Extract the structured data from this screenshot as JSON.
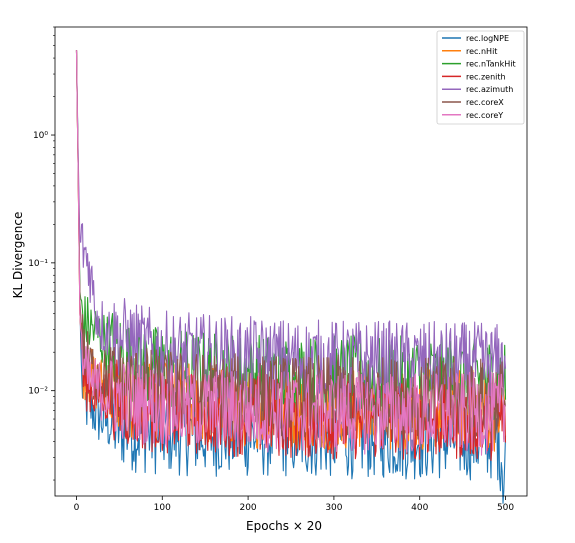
{
  "chart_data": {
    "type": "line",
    "xlabel": "Epochs × 20",
    "ylabel": "KL Divergence",
    "yscale": "log",
    "xlim": [
      -25,
      525
    ],
    "ylim": [
      0.0015,
      7
    ],
    "xticks": [
      0,
      100,
      200,
      300,
      400,
      500
    ],
    "yticks": [
      {
        "value": 1,
        "label": "10⁰"
      },
      {
        "value": 0.1,
        "label": "10⁻¹"
      },
      {
        "value": 0.01,
        "label": "10⁻²"
      }
    ],
    "legend_position": "top-right",
    "series": [
      {
        "name": "rec.logNPE",
        "color": "#1f77b4",
        "points": [
          [
            0,
            4.6
          ],
          [
            2,
            0.6
          ],
          [
            4,
            0.05
          ],
          [
            6,
            0.012
          ],
          [
            10,
            0.008
          ],
          [
            20,
            0.007
          ],
          [
            30,
            0.006
          ],
          [
            40,
            0.0055
          ],
          [
            50,
            0.0052
          ],
          [
            60,
            0.005
          ],
          [
            70,
            0.0048
          ],
          [
            80,
            0.0047
          ],
          [
            100,
            0.0046
          ],
          [
            150,
            0.0045
          ],
          [
            200,
            0.0044
          ],
          [
            250,
            0.0044
          ],
          [
            300,
            0.0043
          ],
          [
            350,
            0.0043
          ],
          [
            400,
            0.0042
          ],
          [
            450,
            0.0042
          ],
          [
            490,
            0.0042
          ],
          [
            495,
            0.0033
          ],
          [
            498,
            0.002
          ],
          [
            500,
            0.004
          ]
        ]
      },
      {
        "name": "rec.nHit",
        "color": "#ff7f0e",
        "points": [
          [
            0,
            4.6
          ],
          [
            2,
            0.5
          ],
          [
            4,
            0.04
          ],
          [
            8,
            0.015
          ],
          [
            20,
            0.012
          ],
          [
            40,
            0.01
          ],
          [
            60,
            0.009
          ],
          [
            80,
            0.0085
          ],
          [
            100,
            0.008
          ],
          [
            150,
            0.0078
          ],
          [
            200,
            0.0075
          ],
          [
            250,
            0.0074
          ],
          [
            300,
            0.0073
          ],
          [
            350,
            0.0072
          ],
          [
            400,
            0.0072
          ],
          [
            450,
            0.0071
          ],
          [
            500,
            0.007
          ]
        ]
      },
      {
        "name": "rec.nTankHit",
        "color": "#2ca02c",
        "points": [
          [
            0,
            4.6
          ],
          [
            2,
            0.6
          ],
          [
            4,
            0.06
          ],
          [
            8,
            0.035
          ],
          [
            20,
            0.03
          ],
          [
            40,
            0.022
          ],
          [
            60,
            0.018
          ],
          [
            80,
            0.016
          ],
          [
            100,
            0.015
          ],
          [
            150,
            0.014
          ],
          [
            200,
            0.0135
          ],
          [
            250,
            0.013
          ],
          [
            300,
            0.013
          ],
          [
            350,
            0.0128
          ],
          [
            400,
            0.0126
          ],
          [
            450,
            0.0125
          ],
          [
            495,
            0.0125
          ],
          [
            500,
            0.012
          ]
        ]
      },
      {
        "name": "rec.zenith",
        "color": "#d62728",
        "points": [
          [
            0,
            4.6
          ],
          [
            2,
            0.5
          ],
          [
            4,
            0.04
          ],
          [
            8,
            0.013
          ],
          [
            20,
            0.01
          ],
          [
            40,
            0.009
          ],
          [
            60,
            0.0075
          ],
          [
            80,
            0.007
          ],
          [
            100,
            0.0068
          ],
          [
            150,
            0.0066
          ],
          [
            200,
            0.0064
          ],
          [
            250,
            0.0062
          ],
          [
            300,
            0.0061
          ],
          [
            350,
            0.006
          ],
          [
            400,
            0.006
          ],
          [
            450,
            0.006
          ],
          [
            500,
            0.006
          ]
        ]
      },
      {
        "name": "rec.azimuth",
        "color": "#9467bd",
        "points": [
          [
            0,
            4.6
          ],
          [
            2,
            0.7
          ],
          [
            4,
            0.15
          ],
          [
            8,
            0.13
          ],
          [
            14,
            0.1
          ],
          [
            18,
            0.07
          ],
          [
            20,
            0.055
          ],
          [
            24,
            0.04
          ],
          [
            30,
            0.032
          ],
          [
            40,
            0.028
          ],
          [
            60,
            0.025
          ],
          [
            80,
            0.022
          ],
          [
            100,
            0.02
          ],
          [
            150,
            0.019
          ],
          [
            200,
            0.018
          ],
          [
            250,
            0.0175
          ],
          [
            300,
            0.017
          ],
          [
            350,
            0.017
          ],
          [
            400,
            0.0165
          ],
          [
            450,
            0.0165
          ],
          [
            500,
            0.016
          ]
        ]
      },
      {
        "name": "rec.coreX",
        "color": "#8c564b",
        "points": [
          [
            0,
            4.6
          ],
          [
            2,
            0.5
          ],
          [
            4,
            0.05
          ],
          [
            8,
            0.02
          ],
          [
            20,
            0.014
          ],
          [
            40,
            0.012
          ],
          [
            60,
            0.011
          ],
          [
            80,
            0.0105
          ],
          [
            100,
            0.01
          ],
          [
            150,
            0.0095
          ],
          [
            200,
            0.0092
          ],
          [
            250,
            0.009
          ],
          [
            300,
            0.009
          ],
          [
            350,
            0.0088
          ],
          [
            400,
            0.0088
          ],
          [
            450,
            0.0087
          ],
          [
            500,
            0.0086
          ]
        ]
      },
      {
        "name": "rec.coreY",
        "color": "#e377c2",
        "points": [
          [
            0,
            4.6
          ],
          [
            2,
            0.5
          ],
          [
            4,
            0.04
          ],
          [
            8,
            0.014
          ],
          [
            20,
            0.011
          ],
          [
            40,
            0.009
          ],
          [
            60,
            0.0085
          ],
          [
            80,
            0.008
          ],
          [
            100,
            0.0075
          ],
          [
            150,
            0.0072
          ],
          [
            200,
            0.007
          ],
          [
            250,
            0.0069
          ],
          [
            300,
            0.0068
          ],
          [
            350,
            0.0067
          ],
          [
            400,
            0.0067
          ],
          [
            450,
            0.0066
          ],
          [
            500,
            0.0066
          ]
        ]
      }
    ]
  }
}
